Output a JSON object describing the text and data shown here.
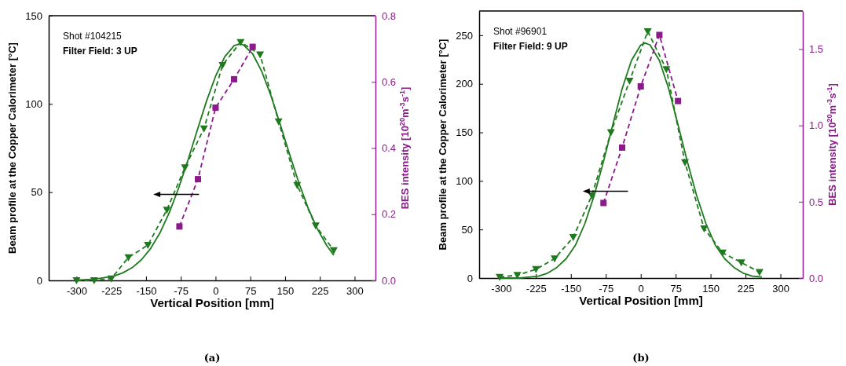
{
  "chart_data": [
    {
      "type": "line",
      "xlabel": "Vertical Position [mm]",
      "ylabel": "Beam profile at the Copper Calorimeter [°C]",
      "y2label": "BES intensity [10$^{20}$m$^{-3}$s$^{-1}$]",
      "xlim": [
        -360,
        345
      ],
      "xticks": [
        -300,
        -225,
        -150,
        -75,
        0,
        75,
        150,
        225,
        300
      ],
      "ylim": [
        0,
        150
      ],
      "yticks": [
        0,
        50,
        100,
        150
      ],
      "y2lim": [
        0,
        0.8
      ],
      "y2ticks": [
        {
          "value": 0,
          "label": "0.0"
        },
        {
          "value": 0.2,
          "label": "0.2"
        },
        {
          "value": 0.4,
          "label": "0.4"
        },
        {
          "value": 0.6,
          "label": "0.6"
        },
        {
          "value": 0.8,
          "label": "0.8"
        }
      ],
      "grid": false,
      "series": [
        {
          "color": "#1f7a1f",
          "line_style": "solid",
          "marker": "none",
          "x": [
            -300,
            -260,
            -220,
            -200,
            -180,
            -160,
            -140,
            -120,
            -100,
            -80,
            -60,
            -40,
            -20,
            0,
            20,
            40,
            52,
            60,
            80,
            100,
            120,
            140,
            160,
            180,
            200,
            220,
            240,
            255
          ],
          "values": [
            0.2,
            0.7,
            2.4,
            4.3,
            7.2,
            11.7,
            18.1,
            26.9,
            38.3,
            52.1,
            67.8,
            84.7,
            101.2,
            115.7,
            126.8,
            133.0,
            134,
            133.5,
            128.4,
            118.2,
            104.3,
            88.0,
            71.2,
            55.1,
            40.8,
            29.0,
            19.7,
            14.3
          ]
        },
        {
          "color": "#1f7a1f",
          "line_style": "dashed",
          "marker": "triangle",
          "x": [
            -300,
            -262,
            -225,
            -188,
            -146,
            -105,
            -66,
            -25,
            15,
            54,
            96,
            136,
            176,
            216,
            255
          ],
          "values": [
            0,
            0,
            1,
            13,
            20,
            40,
            64,
            86,
            122,
            135,
            128,
            90,
            54,
            31,
            17
          ]
        },
        {
          "color": "#8b1a8b",
          "line_style": "dashed",
          "marker": "square",
          "axis": "y2",
          "x": [
            -78,
            -38,
            0,
            40,
            80
          ],
          "values": [
            0.163,
            0.306,
            0.522,
            0.608,
            0.706
          ]
        }
      ],
      "annotations": [
        "Shot #104215",
        "Filter Field: 3 UP",
        "(a)"
      ]
    },
    {
      "type": "line",
      "xlabel": "Vertical Position [mm]",
      "ylabel": "Beam profile at the Copper Calorimeter [°C]",
      "y2label": "BES intensity [10$^{20}$m$^{-3}$s$^{-1}$]",
      "xlim": [
        -347,
        348
      ],
      "xticks": [
        -300,
        -225,
        -150,
        -75,
        0,
        75,
        150,
        225,
        300
      ],
      "ylim": [
        0,
        275
      ],
      "yticks": [
        0,
        50,
        100,
        150,
        200,
        250
      ],
      "y2lim": [
        0,
        1.75
      ],
      "y2ticks": [
        {
          "value": 0,
          "label": "0.0"
        },
        {
          "value": 0.5,
          "label": "0.5"
        },
        {
          "value": 1,
          "label": "1.0"
        },
        {
          "value": 1.5,
          "label": "1.5"
        }
      ],
      "grid": false,
      "series": [
        {
          "color": "#1f7a1f",
          "line_style": "solid",
          "marker": "none",
          "x": [
            -300,
            -260,
            -220,
            -200,
            -180,
            -160,
            -140,
            -120,
            -100,
            -80,
            -60,
            -40,
            -20,
            0,
            10,
            20,
            40,
            60,
            80,
            100,
            120,
            140,
            160,
            180,
            200,
            220,
            240,
            260
          ],
          "values": [
            0,
            0,
            2,
            5,
            11,
            20,
            34,
            56,
            85,
            120,
            158,
            195,
            224,
            240,
            242,
            240,
            224,
            195,
            158,
            120,
            85,
            56,
            34,
            20,
            11,
            5,
            2,
            1
          ]
        },
        {
          "color": "#1f7a1f",
          "line_style": "dashed",
          "marker": "triangle",
          "x": [
            -303,
            -265,
            -225,
            -185,
            -145,
            -105,
            -64,
            -24,
            15,
            55,
            95,
            136,
            176,
            216,
            255
          ],
          "values": [
            1,
            3,
            9,
            20,
            42,
            85,
            150,
            203,
            254,
            215,
            119,
            51,
            26,
            16,
            6
          ]
        },
        {
          "color": "#8b1a8b",
          "line_style": "dashed",
          "marker": "square",
          "axis": "y2",
          "x": [
            -80,
            -40,
            0,
            40,
            80
          ],
          "values": [
            0.492,
            0.855,
            1.256,
            1.593,
            1.16
          ]
        }
      ],
      "annotations": [
        "Shot #96901",
        "Filter Field: 9 UP",
        "(b)"
      ]
    }
  ]
}
